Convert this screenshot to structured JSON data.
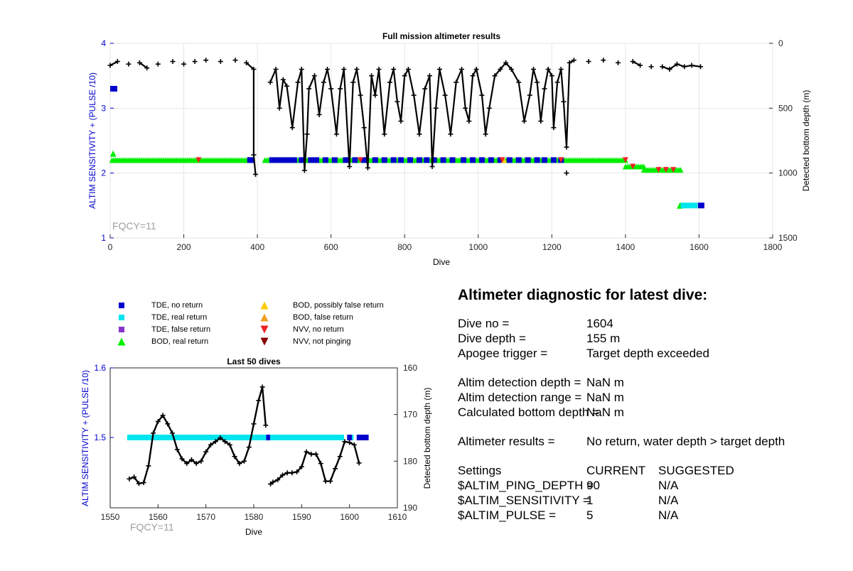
{
  "chart_data": [
    {
      "type": "scatter",
      "title": "Full mission altimeter results",
      "xlabel": "Dive",
      "ylabel": "ALTIM SENSITIVITY + (PULSE /10)",
      "y2label": "Detected bottom depth (m)",
      "xlim": [
        0,
        1800
      ],
      "ylim": [
        1,
        4
      ],
      "y2lim": [
        1500,
        0
      ],
      "xticks": [
        "0",
        "200",
        "400",
        "600",
        "800",
        "1000",
        "1200",
        "1400",
        "1600",
        "1800"
      ],
      "yticks": [
        "1",
        "2",
        "3",
        "4"
      ],
      "y2ticks": [
        "0",
        "500",
        "1000",
        "1500"
      ],
      "annotation": "FQCY=11",
      "grid": true,
      "series": [
        {
          "name": "TDE, no return",
          "color": "#0000cc",
          "marker": "square",
          "segments": [
            [
              0,
              8,
              3.3
            ],
            [
              380,
              1230,
              2.2
            ],
            [
              1595,
              1604,
              1.5
            ]
          ]
        },
        {
          "name": "TDE, real return",
          "color": "#00e5ee",
          "marker": "square",
          "segments": [
            [
              1545,
              1595,
              1.5
            ]
          ]
        },
        {
          "name": "BOD, real return",
          "color": "#00ee00",
          "marker": "triangle",
          "segments": [
            [
              5,
              380,
              2.2
            ],
            [
              420,
              1400,
              2.2
            ],
            [
              1400,
              1450,
              2.1
            ],
            [
              1450,
              1550,
              2.05
            ]
          ]
        },
        {
          "name": "BOD, possibly false return",
          "color": "#ffcc00",
          "marker": "triangle",
          "points": [
            [
              1070,
              2.2
            ]
          ]
        },
        {
          "name": "NVV, no return",
          "color": "#ee2222",
          "marker": "triangle-down",
          "points": [
            [
              240,
              2.2
            ],
            [
              680,
              2.2
            ],
            [
              1065,
              2.2
            ],
            [
              1225,
              2.2
            ],
            [
              1400,
              2.2
            ],
            [
              1420,
              2.1
            ],
            [
              1490,
              2.05
            ],
            [
              1510,
              2.05
            ],
            [
              1530,
              2.05
            ]
          ]
        },
        {
          "name": "Detected bottom depth",
          "color": "#000000",
          "depth": [
            [
              0,
              170
            ],
            [
              20,
              140
            ],
            [
              50,
              160
            ],
            [
              80,
              150
            ],
            [
              100,
              190
            ],
            [
              130,
              160
            ],
            [
              170,
              140
            ],
            [
              200,
              160
            ],
            [
              230,
              140
            ],
            [
              260,
              130
            ],
            [
              300,
              140
            ],
            [
              340,
              130
            ],
            [
              370,
              150
            ],
            [
              390,
              200
            ],
            [
              390,
              860
            ],
            [
              395,
              1010
            ],
            [
              435,
              300
            ],
            [
              450,
              200
            ],
            [
              460,
              500
            ],
            [
              470,
              280
            ],
            [
              480,
              330
            ],
            [
              495,
              650
            ],
            [
              510,
              300
            ],
            [
              520,
              200
            ],
            [
              528,
              980
            ],
            [
              535,
              700
            ],
            [
              540,
              350
            ],
            [
              555,
              250
            ],
            [
              568,
              550
            ],
            [
              580,
              300
            ],
            [
              590,
              200
            ],
            [
              600,
              350
            ],
            [
              615,
              700
            ],
            [
              625,
              350
            ],
            [
              635,
              200
            ],
            [
              650,
              950
            ],
            [
              660,
              300
            ],
            [
              670,
              200
            ],
            [
              680,
              400
            ],
            [
              690,
              650
            ],
            [
              700,
              960
            ],
            [
              710,
              250
            ],
            [
              720,
              400
            ],
            [
              730,
              200
            ],
            [
              745,
              700
            ],
            [
              760,
              300
            ],
            [
              770,
              200
            ],
            [
              780,
              450
            ],
            [
              790,
              600
            ],
            [
              800,
              250
            ],
            [
              810,
              200
            ],
            [
              825,
              400
            ],
            [
              840,
              700
            ],
            [
              855,
              350
            ],
            [
              868,
              250
            ],
            [
              875,
              950
            ],
            [
              885,
              500
            ],
            [
              895,
              200
            ],
            [
              910,
              400
            ],
            [
              925,
              700
            ],
            [
              940,
              300
            ],
            [
              955,
              200
            ],
            [
              965,
              500
            ],
            [
              975,
              600
            ],
            [
              985,
              250
            ],
            [
              995,
              200
            ],
            [
              1010,
              400
            ],
            [
              1020,
              700
            ],
            [
              1030,
              500
            ],
            [
              1045,
              250
            ],
            [
              1060,
              200
            ],
            [
              1075,
              150
            ],
            [
              1090,
              200
            ],
            [
              1110,
              300
            ],
            [
              1125,
              600
            ],
            [
              1140,
              400
            ],
            [
              1150,
              200
            ],
            [
              1160,
              300
            ],
            [
              1170,
              600
            ],
            [
              1180,
              350
            ],
            [
              1190,
              200
            ],
            [
              1200,
              250
            ],
            [
              1205,
              650
            ],
            [
              1215,
              300
            ],
            [
              1225,
              200
            ],
            [
              1232,
              450
            ],
            [
              1240,
              800
            ],
            [
              1248,
              150
            ],
            [
              1260,
              130
            ],
            [
              1300,
              140
            ],
            [
              1340,
              130
            ],
            [
              1380,
              150
            ],
            [
              1420,
              140
            ],
            [
              1440,
              170
            ],
            [
              1470,
              180
            ],
            [
              1500,
              180
            ],
            [
              1520,
              200
            ],
            [
              1540,
              160
            ],
            [
              1560,
              180
            ],
            [
              1580,
              170
            ],
            [
              1604,
              180
            ]
          ]
        }
      ]
    },
    {
      "type": "scatter",
      "title": "Last 50 dives",
      "xlabel": "Dive",
      "ylabel": "ALTIM SENSITIVITY + (PULSE /10)",
      "y2label": "Detected bottom depth (m)",
      "xlim": [
        1550,
        1610
      ],
      "ylim": [
        1.6,
        1.4
      ],
      "y2lim": [
        160,
        190
      ],
      "xticks": [
        "1550",
        "1560",
        "1570",
        "1580",
        "1590",
        "1600",
        "1610"
      ],
      "yticks": [
        "1.6",
        "1.5"
      ],
      "y2ticks": [
        "160",
        "170",
        "180",
        "190"
      ],
      "annotation": "FQCY=11",
      "series": [
        {
          "name": "TDE, real return",
          "color": "#00e5ee",
          "segments": [
            [
              1554,
              1564,
              1.5
            ],
            [
              1564,
              1583,
              1.5
            ],
            [
              1583,
              1599,
              1.5
            ],
            [
              1600,
              1601,
              1.5
            ]
          ]
        },
        {
          "name": "TDE, no return",
          "color": "#0000cc",
          "segments": [
            [
              1582.6,
              1583.4,
              1.5
            ],
            [
              1599.5,
              1600.5,
              1.5
            ],
            [
              1601.5,
              1604,
              1.5
            ]
          ]
        },
        {
          "name": "Detected bottom depth",
          "color": "#000000",
          "depth": [
            [
              1554,
              183.8
            ],
            [
              1555,
              183.4
            ],
            [
              1556,
              184.8
            ],
            [
              1557,
              184.6
            ],
            [
              1558,
              181
            ],
            [
              1559,
              174
            ],
            [
              1560,
              171.5
            ],
            [
              1561,
              170.2
            ],
            [
              1562,
              172
            ],
            [
              1563,
              174
            ],
            [
              1564,
              177.5
            ],
            [
              1565,
              179.5
            ],
            [
              1566,
              180.5
            ],
            [
              1567,
              179.7
            ],
            [
              1568,
              180.5
            ],
            [
              1569,
              180
            ],
            [
              1570,
              178
            ],
            [
              1571,
              176.5
            ],
            [
              1572,
              175.8
            ],
            [
              1573,
              175
            ],
            [
              1574,
              175.8
            ],
            [
              1575,
              176.5
            ],
            [
              1576,
              179
            ],
            [
              1577,
              180.5
            ],
            [
              1578,
              180
            ],
            [
              1579,
              177
            ],
            [
              1580,
              172
            ],
            [
              1581,
              167
            ],
            [
              1581.8,
              164.1
            ],
            [
              1582.5,
              172.3
            ],
            [
              1583.5,
              184.9
            ],
            [
              1584,
              184.5
            ],
            [
              1585,
              184
            ],
            [
              1586,
              183
            ],
            [
              1587,
              182.5
            ],
            [
              1588,
              182.5
            ],
            [
              1589,
              182.3
            ],
            [
              1590,
              181.2
            ],
            [
              1591,
              178
            ],
            [
              1592,
              178.5
            ],
            [
              1593,
              178.5
            ],
            [
              1594,
              180.5
            ],
            [
              1595,
              184.3
            ],
            [
              1596,
              184.3
            ],
            [
              1597,
              181.6
            ],
            [
              1598,
              179
            ],
            [
              1599,
              175.8
            ],
            [
              1600,
              176
            ],
            [
              1601,
              176.5
            ],
            [
              1602,
              180.4
            ]
          ]
        }
      ]
    }
  ],
  "legend": [
    {
      "label": "TDE, no return",
      "color": "#0000cc",
      "marker": "square"
    },
    {
      "label": "TDE, real return",
      "color": "#00e5ee",
      "marker": "square"
    },
    {
      "label": "TDE, false return",
      "color": "#8833cc",
      "marker": "square"
    },
    {
      "label": "BOD, real return",
      "color": "#00ee00",
      "marker": "triangle"
    },
    {
      "label": "BOD, possibly false return",
      "color": "#ffcc00",
      "marker": "triangle"
    },
    {
      "label": "BOD, false return",
      "color": "#f0a020",
      "marker": "triangle"
    },
    {
      "label": "NVV, no return",
      "color": "#ee2222",
      "marker": "triangle-down"
    },
    {
      "label": "NVV, not pinging",
      "color": "#880000",
      "marker": "triangle-down"
    }
  ],
  "diagnostic": {
    "title": "Altimeter diagnostic for latest dive:",
    "dive_no_label": "Dive no =",
    "dive_no": "1604",
    "dive_depth_label": "Dive depth =",
    "dive_depth": "155 m",
    "apogee_label": "Apogee trigger =",
    "apogee": "Target depth exceeded",
    "det_depth_label": "Altim detection depth =",
    "det_depth": "NaN m",
    "det_range_label": "Altim detection range =",
    "det_range": "NaN m",
    "calc_bottom_label": "Calculated bottom depth =",
    "calc_bottom": "NaN m",
    "results_label": "Altimeter results =",
    "results": "No return, water depth > target depth",
    "settings_label": "Settings",
    "current_label": "CURRENT",
    "suggested_label": "SUGGESTED",
    "ping_label": "$ALTIM_PING_DEPTH =",
    "ping_current": "90",
    "ping_suggested": "N/A",
    "sens_label": "$ALTIM_SENSITIVITY =",
    "sens_current": "1",
    "sens_suggested": "N/A",
    "pulse_label": "$ALTIM_PULSE =",
    "pulse_current": "5",
    "pulse_suggested": "N/A"
  },
  "colors": {
    "axis_label": "#0000cc",
    "grid": "#e6e6e6",
    "annotation": "#a0a0a0"
  }
}
